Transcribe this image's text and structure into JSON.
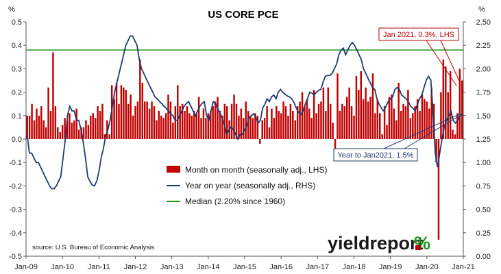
{
  "chart_data": {
    "type": "bar",
    "title": "US CORE PCE",
    "left_axis": {
      "unit": "%",
      "min": -0.5,
      "max": 0.5,
      "ticks": [
        -0.5,
        -0.4,
        -0.3,
        -0.2,
        -0.1,
        0.0,
        0.1,
        0.2,
        0.3,
        0.4,
        0.5
      ],
      "tick_labels": [
        "-0.5",
        "-0.4",
        "-0.3",
        "-0.2",
        "-0.1",
        "0.0",
        "0.1",
        "0.2",
        "0.3",
        "0.4",
        "0.5"
      ]
    },
    "right_axis": {
      "unit": "%",
      "min": 0.0,
      "max": 2.5,
      "ticks": [
        0.0,
        0.25,
        0.5,
        0.75,
        1.0,
        1.25,
        1.5,
        1.75,
        2.0,
        2.25,
        2.5
      ],
      "tick_labels": [
        "0.00",
        "0.25",
        "0.50",
        "0.75",
        "1.00",
        "1.25",
        "1.50",
        "1.75",
        "2.00",
        "2.25",
        "2.50"
      ]
    },
    "x_labels": [
      "Jan-09",
      "Jan-10",
      "Jan-11",
      "Jan-12",
      "Jan-13",
      "Jan-14",
      "Jan-15",
      "Jan-16",
      "Jan-17",
      "Jan-18",
      "Jan-19",
      "Jan-20",
      "Jan-21"
    ],
    "x_start": "2009-01",
    "x_end": "2021-01",
    "grid": false,
    "legend_position": "lower-center",
    "series": [
      {
        "name": "Month on month (seasonally adj., LHS)",
        "axis": "left",
        "kind": "bar",
        "color": "#c00000",
        "values": [
          0.1,
          0.1,
          0.15,
          0.08,
          0.13,
          0.1,
          0.14,
          0.08,
          0.05,
          0.22,
          0.12,
          0.37,
          0.14,
          0.05,
          0.03,
          0.06,
          0.09,
          0.08,
          0.11,
          0.07,
          0.08,
          0.13,
          0.04,
          0.05,
          0.05,
          0.08,
          0.06,
          0.1,
          0.11,
          0.09,
          0.14,
          0.12,
          0.15,
          0.02,
          0.08,
          0.02,
          0.23,
          0.17,
          0.24,
          0.15,
          0.23,
          0.22,
          0.21,
          0.15,
          0.19,
          0.1,
          0.14,
          0.16,
          0.34,
          0.24,
          0.16,
          0.16,
          0.13,
          0.16,
          0.14,
          0.08,
          0.12,
          0.1,
          0.09,
          0.11,
          0.19,
          0.16,
          0.07,
          0.14,
          0.23,
          0.14,
          0.15,
          0.12,
          0.14,
          0.11,
          0.1,
          0.12,
          0.11,
          0.18,
          0.09,
          0.13,
          0.09,
          0.11,
          0.12,
          0.14,
          0.16,
          0.18,
          0.12,
          0.1,
          0.15,
          0.14,
          0.08,
          0.15,
          0.19,
          0.15,
          0.1,
          0.13,
          0.09,
          0.16,
          0.12,
          0.1,
          0.09,
          0.11,
          0.1,
          -0.02,
          0.08,
          0.09,
          0.14,
          0.05,
          0.13,
          0.09,
          0.14,
          0.12,
          0.11,
          0.16,
          0.14,
          0.1,
          0.15,
          0.12,
          0.08,
          0.14,
          0.16,
          0.2,
          0.14,
          0.17,
          0.13,
          0.09,
          0.21,
          0.11,
          0.15,
          0.16,
          0.22,
          0.12,
          0.22,
          0.15,
          0.07,
          -0.08,
          0.28,
          0.12,
          0.15,
          0.14,
          0.18,
          0.22,
          0.14,
          0.1,
          0.27,
          0.21,
          0.29,
          0.17,
          0.22,
          0.16,
          0.18,
          0.28,
          0.11,
          0.17,
          0.11,
          0.02,
          0.14,
          0.06,
          0.18,
          0.19,
          0.13,
          0.08,
          0.24,
          0.12,
          0.15,
          0.14,
          0.21,
          0.09,
          0.11,
          0.14,
          0.17,
          0.12,
          0.19,
          0.17,
          0.16,
          0.13,
          0.22,
          0.15,
          -0.1,
          -0.43,
          0.2,
          0.34,
          0.31,
          0.2,
          0.29,
          0.04,
          0.02,
          0.11,
          0.3,
          0.25
        ]
      },
      {
        "name": "Year on year (seasonally adj., RHS)",
        "axis": "right",
        "kind": "line",
        "color": "#1f3a6e",
        "values": [
          1.3,
          1.1,
          1.1,
          1.05,
          1.0,
          1.0,
          0.95,
          0.9,
          0.85,
          0.8,
          0.75,
          0.72,
          0.72,
          0.75,
          0.8,
          0.85,
          1.05,
          1.25,
          1.5,
          1.6,
          1.55,
          1.55,
          1.45,
          1.45,
          1.35,
          1.22,
          1.05,
          0.85,
          0.8,
          0.76,
          0.75,
          0.8,
          0.9,
          1.05,
          1.15,
          1.28,
          1.35,
          1.45,
          1.6,
          1.75,
          1.85,
          1.95,
          2.05,
          2.15,
          2.25,
          2.3,
          2.35,
          2.35,
          2.3,
          2.25,
          2.1,
          2.0,
          1.95,
          1.9,
          1.85,
          1.8,
          1.75,
          1.7,
          1.68,
          1.65,
          1.63,
          1.6,
          1.58,
          1.55,
          1.52,
          1.5,
          1.45,
          1.45,
          1.5,
          1.55,
          1.6,
          1.63,
          1.65,
          1.6,
          1.55,
          1.5,
          1.55,
          1.6,
          1.63,
          1.65,
          1.5,
          1.45,
          1.55,
          1.65,
          1.63,
          1.57,
          1.53,
          1.47,
          1.4,
          1.3,
          1.35,
          1.38,
          1.35,
          1.3,
          1.25,
          1.3,
          1.3,
          1.35,
          1.4,
          1.48,
          1.5,
          1.52,
          1.48,
          1.42,
          1.45,
          1.58,
          1.62,
          1.68,
          1.65,
          1.7,
          1.72,
          1.68,
          1.75,
          1.78,
          1.75,
          1.73,
          1.71,
          1.7,
          1.68,
          1.64,
          1.58,
          1.54,
          1.51,
          1.55,
          1.62,
          1.68,
          1.75,
          1.74,
          1.72,
          1.75,
          1.77,
          1.78,
          1.86,
          1.92,
          1.93,
          1.93,
          1.95,
          2.0,
          2.05,
          2.15,
          2.2,
          2.22,
          2.15,
          2.2,
          2.25,
          2.28,
          2.25,
          2.2,
          2.15,
          2.1,
          2.0,
          1.95,
          1.9,
          1.85,
          1.8,
          1.78,
          1.68,
          1.62,
          1.58,
          1.55,
          1.6,
          1.65,
          1.68,
          1.7,
          1.78,
          1.8,
          1.78,
          1.72,
          1.7,
          1.68,
          1.65,
          1.6,
          1.58,
          1.55,
          1.62,
          1.68,
          1.72,
          1.8,
          1.88,
          1.92,
          1.88,
          1.55,
          1.1,
          0.95,
          1.1,
          1.25,
          1.38,
          1.45,
          1.5,
          1.55,
          1.45,
          1.42,
          1.45,
          1.5,
          1.52
        ]
      },
      {
        "name": "Median (2.20% since 1960)",
        "axis": "right",
        "kind": "hline",
        "color": "#1a9a1a",
        "value": 2.2
      }
    ],
    "annotations": [
      {
        "text": "Jan 2021, 0.3%, LHS",
        "color": "#c00000",
        "axis": "left",
        "points_to": [
          0.3,
          0.25
        ]
      },
      {
        "text": "Year to Jan2021, 1.5%",
        "color": "#1f3a6e",
        "axis": "right",
        "points_to": [
          1.5
        ]
      }
    ]
  },
  "source_note": "source: U.S. Bureau of Economic Analysis",
  "brand": {
    "word": "yieldreport",
    "symbol": "%"
  },
  "colors": {
    "bars": "#c00000",
    "line": "#1f3a6e",
    "median": "#1a9a1a",
    "brand_green": "#1a9a1a",
    "brand_red": "#c00000"
  }
}
